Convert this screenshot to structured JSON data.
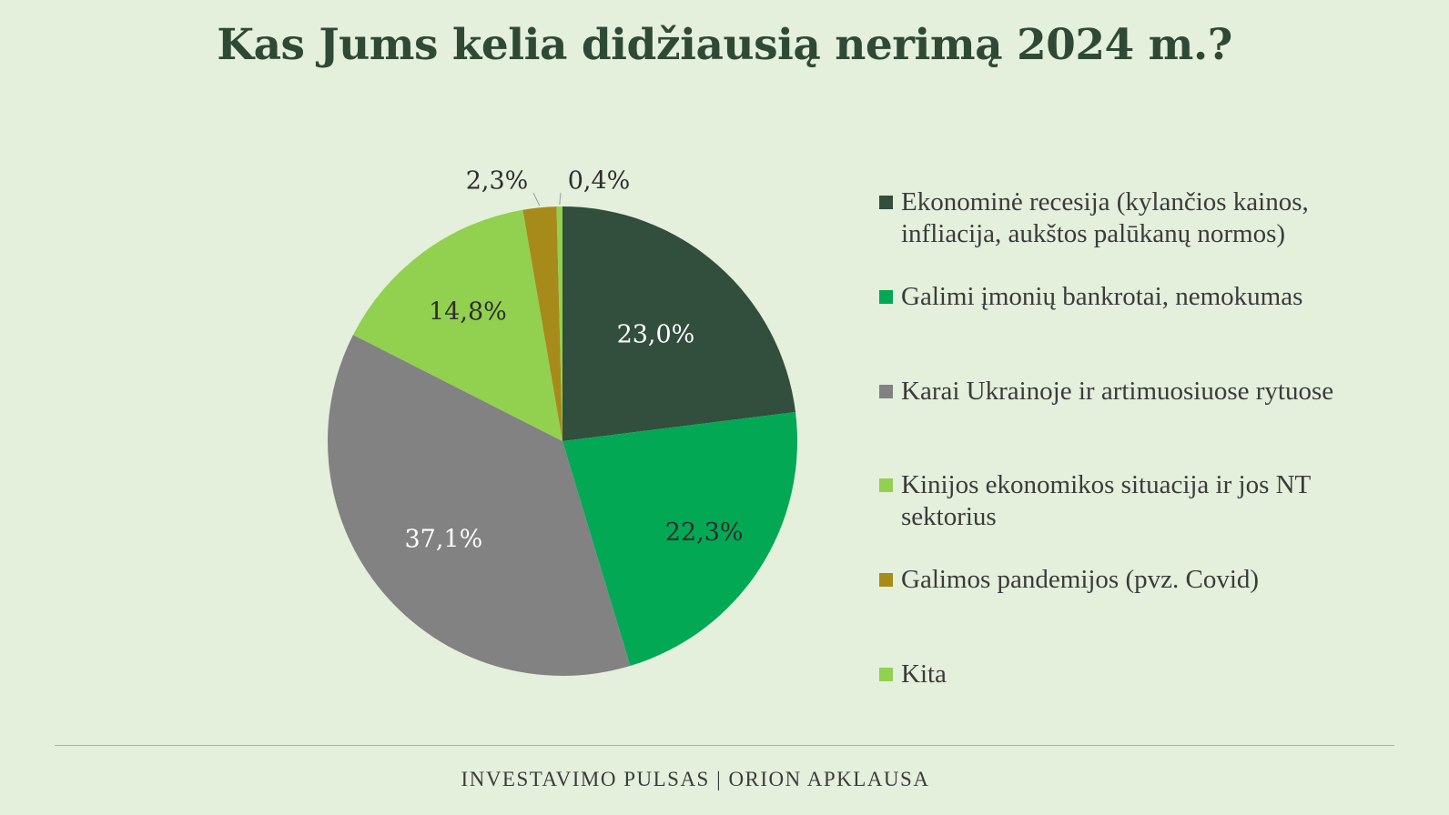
{
  "title": "Kas Jums kelia didžiausią nerimą 2024 m.?",
  "footer": "INVESTAVIMO PULSAS | ORION APKLAUSA",
  "chart_data": {
    "type": "pie",
    "title": "Kas Jums kelia didžiausią nerimą 2024 m.?",
    "legend_position": "right",
    "slices": [
      {
        "label": "Ekonominė recesija (kylančios kainos, infliacija, aukštos palūkanų normos)",
        "value": 23.0,
        "display": "23,0%",
        "color": "#324e3d",
        "label_color": "#ffffff"
      },
      {
        "label": "Galimi įmonių bankrotai, nemokumas",
        "value": 22.3,
        "display": "22,3%",
        "color": "#03a854",
        "label_color": "#2d2d2d"
      },
      {
        "label": "Karai Ukrainoje ir artimuosiuose rytuose",
        "value": 37.1,
        "display": "37,1%",
        "color": "#828282",
        "label_color": "#ffffff"
      },
      {
        "label": "Kinijos ekonomikos situacija ir jos NT sektorius",
        "value": 14.8,
        "display": "14,8%",
        "color": "#92d050",
        "label_color": "#2d2d2d"
      },
      {
        "label": "Galimos pandemijos (pvz. Covid)",
        "value": 2.3,
        "display": "2,3%",
        "color": "#a68b1a",
        "label_color": "#2d2d2d"
      },
      {
        "label": "Kita",
        "value": 0.4,
        "display": "0,4%",
        "color": "#92d050",
        "label_color": "#2d2d2d"
      }
    ]
  }
}
